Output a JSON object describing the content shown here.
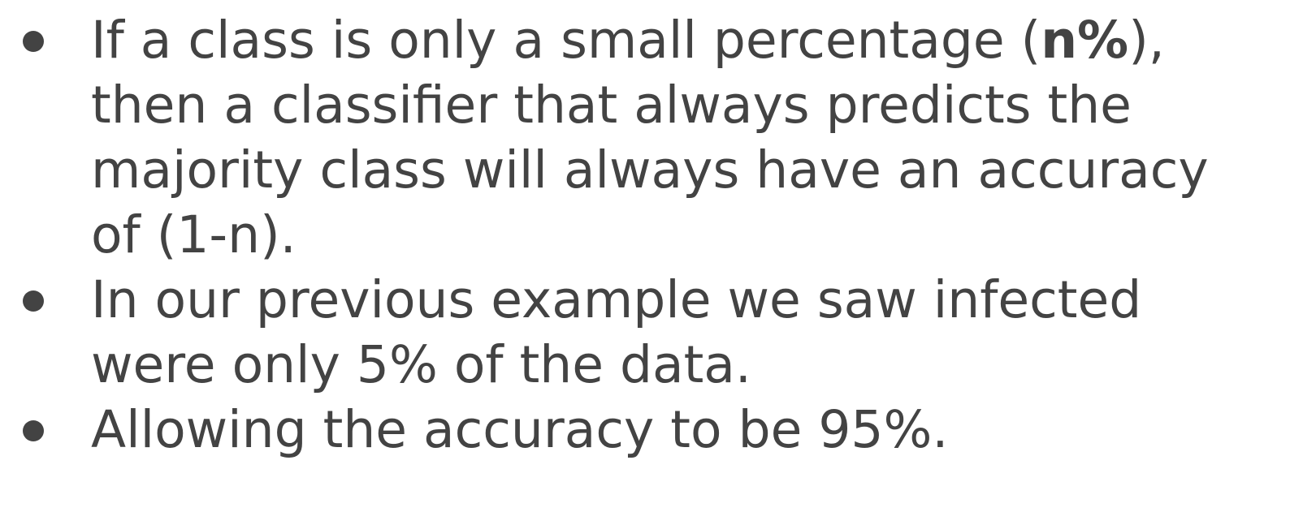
{
  "bullets": [
    {
      "lines": [
        {
          "before": "If a class is only a small percentage (",
          "bold": "n%",
          "after": "),"
        },
        "then a classifier that always predicts the",
        "majority class will always have an accuracy",
        "of (1-n)."
      ]
    },
    {
      "lines": [
        "In our previous example we saw infected",
        "were only 5% of the data."
      ]
    },
    {
      "lines": [
        "Allowing the accuracy to be 95%."
      ]
    }
  ],
  "colors": {
    "text": "#434343",
    "background": "#ffffff"
  }
}
